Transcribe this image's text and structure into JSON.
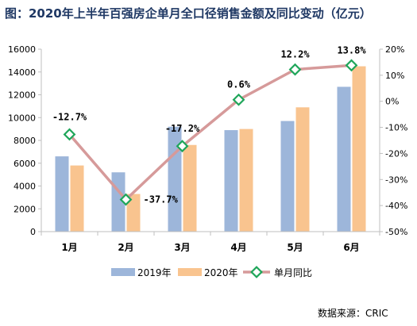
{
  "chart_data": {
    "type": "bar",
    "title": "图：2020年上半年百强房企单月全口径销售金额及同比变动（亿元）",
    "categories": [
      "1月",
      "2月",
      "3月",
      "4月",
      "5月",
      "6月"
    ],
    "series": [
      {
        "name": "2019年",
        "type": "bar",
        "axis": "left",
        "color": "#9db6da",
        "values": [
          6600,
          5200,
          9200,
          8900,
          9700,
          12700
        ]
      },
      {
        "name": "2020年",
        "type": "bar",
        "axis": "left",
        "color": "#f9c48f",
        "values": [
          5800,
          3300,
          7600,
          9000,
          10900,
          14500
        ]
      },
      {
        "name": "单月同比",
        "type": "line",
        "axis": "right",
        "color": "#d69a9a",
        "marker_color": "#1fa65a",
        "values": [
          -12.7,
          -37.7,
          -17.2,
          0.6,
          12.2,
          13.8
        ]
      }
    ],
    "data_labels": [
      "-12.7%",
      "-37.7%",
      "-17.2%",
      "0.6%",
      "12.2%",
      "13.8%"
    ],
    "y_left": {
      "min": 0,
      "max": 16000,
      "ticks": [
        "0",
        "2000",
        "4000",
        "6000",
        "8000",
        "10000",
        "12000",
        "14000",
        "16000"
      ]
    },
    "y_right": {
      "min": -50,
      "max": 20,
      "ticks": [
        "-50%",
        "-40%",
        "-30%",
        "-20%",
        "-10%",
        "0%",
        "10%",
        "20%"
      ]
    },
    "grid": false,
    "legend_position": "bottom",
    "source": "数据来源：CRIC"
  }
}
